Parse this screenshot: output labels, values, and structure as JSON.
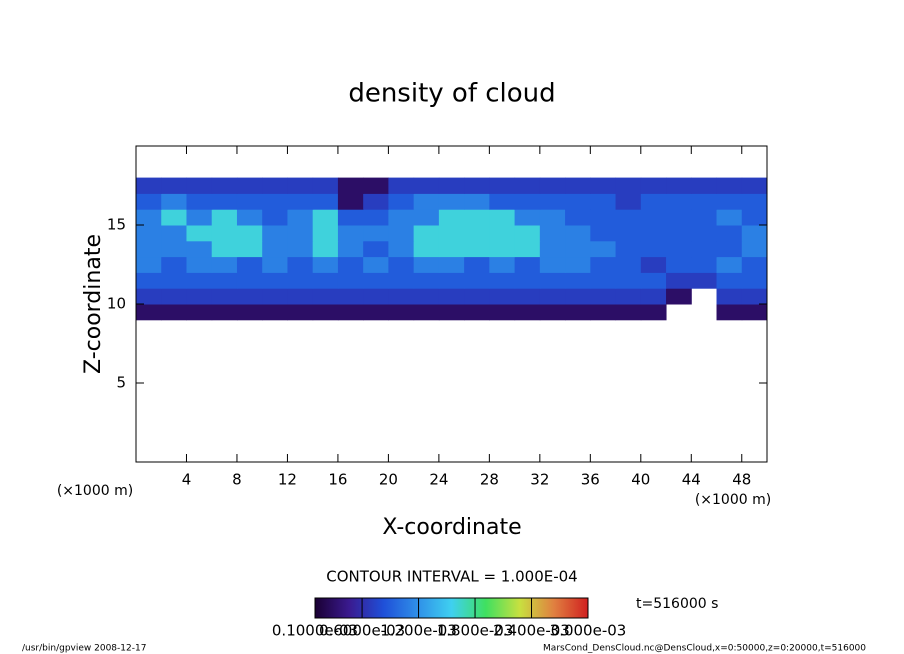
{
  "chart_data": {
    "type": "heatmap",
    "title": "density of cloud",
    "x_label": "X-coordinate",
    "y_label": "Z-coordinate",
    "x_unit": "(×1000 m)",
    "xlim": [
      0,
      50
    ],
    "ylim": [
      0,
      20
    ],
    "xticks": [
      4,
      8,
      12,
      16,
      20,
      24,
      28,
      32,
      36,
      40,
      44,
      48
    ],
    "yticks": [
      5,
      10,
      15
    ],
    "x_edges": [
      0,
      2,
      4,
      6,
      8,
      10,
      12,
      14,
      16,
      18,
      20,
      22,
      24,
      26,
      28,
      30,
      32,
      34,
      36,
      38,
      40,
      42,
      44,
      46,
      48,
      50
    ],
    "z_edges": [
      9,
      10,
      11,
      12,
      13,
      14,
      15,
      16,
      17,
      18
    ],
    "values": [
      [
        0.0003,
        0.0003,
        0.0003,
        0.0003,
        0.0003,
        0.0003,
        0.0003,
        0.0003,
        0.0003,
        0.0003,
        0.0003,
        0.0003,
        0.0003,
        0.0003,
        0.0003,
        0.0003,
        0.0003,
        0.0003,
        0.0003,
        0.0003,
        0.0003,
        null,
        null,
        0.0003,
        0.0003
      ],
      [
        0.0007,
        0.0007,
        0.0007,
        0.0007,
        0.0007,
        0.0007,
        0.0007,
        0.0007,
        0.0007,
        0.0007,
        0.0007,
        0.0007,
        0.0007,
        0.0007,
        0.0007,
        0.0007,
        0.0007,
        0.0007,
        0.0007,
        0.0007,
        0.0007,
        0.0003,
        null,
        0.0007,
        0.0007
      ],
      [
        0.0009,
        0.0009,
        0.0009,
        0.0009,
        0.0009,
        0.0009,
        0.0009,
        0.0009,
        0.0009,
        0.0009,
        0.0009,
        0.0009,
        0.0009,
        0.0009,
        0.0009,
        0.0009,
        0.0009,
        0.0009,
        0.0009,
        0.0009,
        0.0009,
        0.0007,
        0.0007,
        0.0009,
        0.0009
      ],
      [
        0.0011,
        0.0009,
        0.0011,
        0.0011,
        0.0009,
        0.0011,
        0.0009,
        0.0011,
        0.0009,
        0.0011,
        0.0009,
        0.0011,
        0.0011,
        0.0009,
        0.0011,
        0.0009,
        0.0011,
        0.0011,
        0.0009,
        0.0009,
        0.0007,
        0.0009,
        0.0009,
        0.0011,
        0.0009
      ],
      [
        0.0011,
        0.0011,
        0.0011,
        0.0016,
        0.0016,
        0.0011,
        0.0011,
        0.0016,
        0.0011,
        0.0009,
        0.0011,
        0.0016,
        0.0016,
        0.0016,
        0.0016,
        0.0016,
        0.0011,
        0.0011,
        0.0011,
        0.0009,
        0.0009,
        0.0009,
        0.0009,
        0.0009,
        0.0011
      ],
      [
        0.0011,
        0.0011,
        0.0016,
        0.0016,
        0.0016,
        0.0011,
        0.0011,
        0.0016,
        0.0011,
        0.0011,
        0.0011,
        0.0016,
        0.0016,
        0.0016,
        0.0016,
        0.0016,
        0.0011,
        0.0011,
        0.0009,
        0.0009,
        0.0009,
        0.0009,
        0.0009,
        0.0009,
        0.0011
      ],
      [
        0.0011,
        0.0016,
        0.0011,
        0.0016,
        0.0011,
        0.0009,
        0.0011,
        0.0016,
        0.0009,
        0.0009,
        0.0011,
        0.0011,
        0.0016,
        0.0016,
        0.0016,
        0.0011,
        0.0011,
        0.0009,
        0.0009,
        0.0009,
        0.0009,
        0.0009,
        0.0009,
        0.0011,
        0.0009
      ],
      [
        0.0009,
        0.0011,
        0.0009,
        0.0009,
        0.0009,
        0.0009,
        0.0009,
        0.0009,
        0.0003,
        0.0007,
        0.0009,
        0.0011,
        0.0011,
        0.0011,
        0.0009,
        0.0009,
        0.0009,
        0.0009,
        0.0009,
        0.0007,
        0.0009,
        0.0009,
        0.0009,
        0.0009,
        0.0009
      ],
      [
        0.0007,
        0.0007,
        0.0007,
        0.0007,
        0.0007,
        0.0007,
        0.0007,
        0.0007,
        0.0003,
        0.0003,
        0.0007,
        0.0007,
        0.0007,
        0.0007,
        0.0007,
        0.0007,
        0.0007,
        0.0007,
        0.0007,
        0.0007,
        0.0007,
        0.0007,
        0.0007,
        0.0007,
        0.0007
      ]
    ],
    "colormap": [
      "#1a0033",
      "#3a1a8f",
      "#1f4fd8",
      "#2f8fe8",
      "#3fd0f0",
      "#3fe060",
      "#c8e040",
      "#e08040",
      "#d02020"
    ],
    "colorbar_ticks": [
      {
        "value": 0.0001,
        "label": "0.1000e-03"
      },
      {
        "value": 0.0006,
        "label": "0.6000e-03"
      },
      {
        "value": 0.0012,
        "label": "1.200e-03"
      },
      {
        "value": 0.0018,
        "label": "1.800e-03"
      },
      {
        "value": 0.0024,
        "label": "2.400e-03"
      },
      {
        "value": 0.003,
        "label": "3.000e-03"
      }
    ],
    "contour_interval": "CONTOUR INTERVAL = 1.000E-04",
    "time": "t=516000 s",
    "footer_left": "/usr/bin/gpview  2008-12-17",
    "footer_right": "MarsCond_DensCloud.nc@DensCloud,x=0:50000,z=0:20000,t=516000"
  }
}
